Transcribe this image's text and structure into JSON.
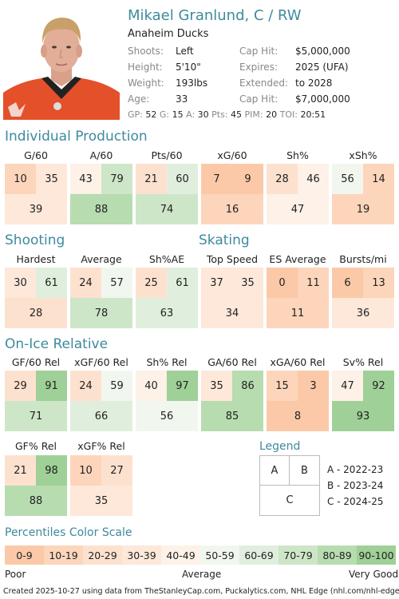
{
  "player": {
    "name": "Mikael Granlund, C / RW",
    "team": "Anaheim Ducks",
    "left_info": [
      {
        "k": "Shoots:",
        "v": "Left"
      },
      {
        "k": "Height:",
        "v": "5'10\""
      },
      {
        "k": "Weight:",
        "v": "193lbs"
      },
      {
        "k": "Age:",
        "v": "33"
      }
    ],
    "right_info": [
      {
        "k": "Cap Hit:",
        "v": "$5,000,000"
      },
      {
        "k": "Expires:",
        "v": "2025 (UFA)"
      },
      {
        "k": "Extended:",
        "v": "to 2028"
      },
      {
        "k": "Cap Hit:",
        "v": "$7,000,000"
      }
    ],
    "stats": [
      {
        "k": "GP:",
        "v": "52"
      },
      {
        "k": "G:",
        "v": "15"
      },
      {
        "k": "A:",
        "v": "30"
      },
      {
        "k": "Pts:",
        "v": "45"
      },
      {
        "k": "PIM:",
        "v": "20"
      },
      {
        "k": "TOI:",
        "v": "20:51"
      }
    ]
  },
  "sections": [
    {
      "title": "Individual Production",
      "metrics": [
        {
          "label": "G/60",
          "a": 10,
          "b": 35,
          "c": 39
        },
        {
          "label": "A/60",
          "a": 43,
          "b": 79,
          "c": 88
        },
        {
          "label": "Pts/60",
          "a": 21,
          "b": 60,
          "c": 74
        },
        {
          "label": "xG/60",
          "a": 7,
          "b": 9,
          "c": 16
        },
        {
          "label": "Sh%",
          "a": 28,
          "b": 46,
          "c": 47
        },
        {
          "label": "xSh%",
          "a": 56,
          "b": 14,
          "c": 19
        }
      ]
    },
    {
      "title": "Shooting",
      "metrics": [
        {
          "label": "Hardest",
          "a": 30,
          "b": 61,
          "c": 28
        },
        {
          "label": "Average",
          "a": 24,
          "b": 57,
          "c": 78
        },
        {
          "label": "Sh%AE",
          "a": 25,
          "b": 61,
          "c": 63
        }
      ]
    },
    {
      "title": "Skating",
      "metrics": [
        {
          "label": "Top Speed",
          "a": 37,
          "b": 35,
          "c": 34
        },
        {
          "label": "ES Average",
          "a": 0,
          "b": 11,
          "c": 11
        },
        {
          "label": "Bursts/mi",
          "a": 6,
          "b": 13,
          "c": 36
        }
      ]
    },
    {
      "title": "On-Ice Relative",
      "metrics": [
        {
          "label": "GF/60 Rel",
          "a": 29,
          "b": 91,
          "c": 71
        },
        {
          "label": "xGF/60 Rel",
          "a": 24,
          "b": 59,
          "c": 66
        },
        {
          "label": "Sh% Rel",
          "a": 40,
          "b": 97,
          "c": 56
        },
        {
          "label": "GA/60 Rel",
          "a": 35,
          "b": 86,
          "c": 85
        },
        {
          "label": "xGA/60 Rel",
          "a": 15,
          "b": 3,
          "c": 8
        },
        {
          "label": "Sv% Rel",
          "a": 47,
          "b": 92,
          "c": 93
        },
        {
          "label": "GF% Rel",
          "a": 21,
          "b": 98,
          "c": 88
        },
        {
          "label": "xGF% Rel",
          "a": 10,
          "b": 27,
          "c": 35
        }
      ]
    }
  ],
  "legend": {
    "title": "Legend",
    "a": "A",
    "b": "B",
    "c": "C",
    "entries": [
      "A - 2022-23",
      "B - 2023-24",
      "C - 2024-25"
    ]
  },
  "scale": {
    "title": "Percentiles Color Scale",
    "bins": [
      "0-9",
      "10-19",
      "20-29",
      "30-39",
      "40-49",
      "50-59",
      "60-69",
      "70-79",
      "80-89",
      "90-100"
    ],
    "colors": [
      "#fbc9a7",
      "#fcd5bb",
      "#fde1cf",
      "#fde8da",
      "#fdf1e8",
      "#f1f7ef",
      "#e0efdd",
      "#cde6c8",
      "#b7dcb0",
      "#9fd097"
    ],
    "poor": "Poor",
    "average": "Average",
    "very_good": "Very Good"
  },
  "footer": "Created 2025-10-27 using data from TheStanleyCap.com, Puckalytics.com, NHL Edge (nhl.com/nhl-edge)."
}
